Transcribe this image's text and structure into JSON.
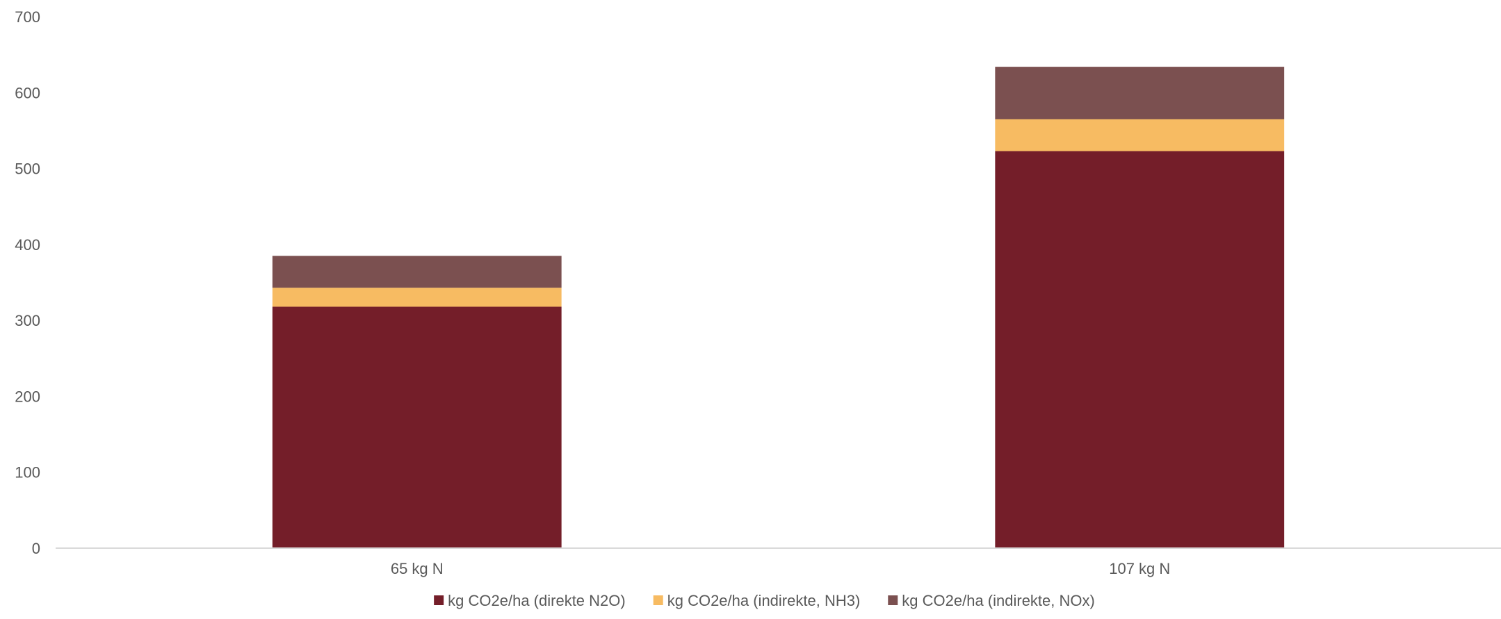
{
  "chart_data": {
    "type": "bar",
    "stacked": true,
    "categories": [
      "65 kg N",
      "107 kg N"
    ],
    "series": [
      {
        "name": "kg CO2e/ha (direkte N2O)",
        "color": "#741e29",
        "values": [
          318,
          523
        ]
      },
      {
        "name": "kg CO2e/ha (indirekte, NH3)",
        "color": "#f7bb62",
        "values": [
          25,
          42
        ]
      },
      {
        "name": "kg CO2e/ha (indirekte, NOx)",
        "color": "#7b5050",
        "values": [
          42,
          69
        ]
      }
    ],
    "ylim": [
      0,
      700
    ],
    "yticks": [
      0,
      100,
      200,
      300,
      400,
      500,
      600,
      700
    ],
    "title": "",
    "xlabel": "",
    "ylabel": "",
    "grid": false,
    "legend_position": "bottom"
  }
}
